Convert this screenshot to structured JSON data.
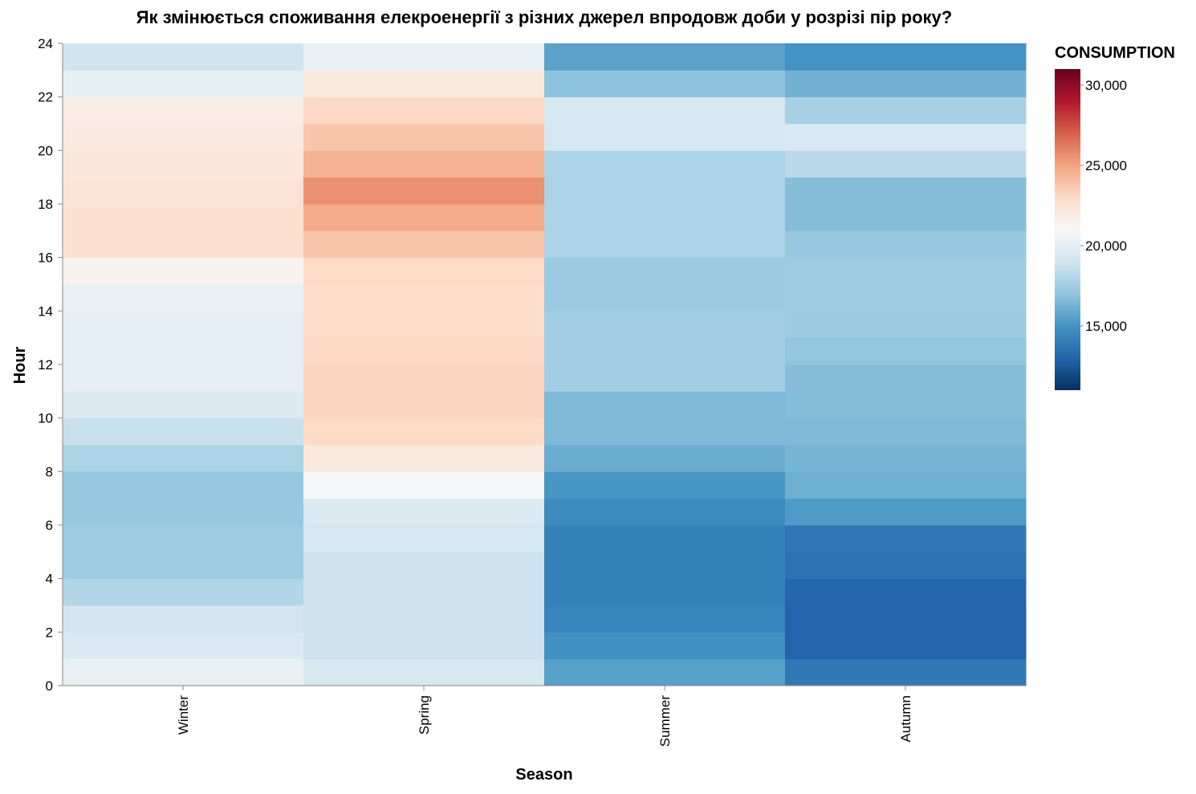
{
  "chart_data": {
    "type": "heatmap",
    "title": "Як змінюється споживання елекроенергії з різних джерел впродовж доби у розрізі пір року?",
    "xlabel": "Season",
    "ylabel": "Hour",
    "x_categories": [
      "Winter",
      "Spring",
      "Summer",
      "Autumn"
    ],
    "y_range": [
      0,
      24
    ],
    "y_ticks": [
      0,
      2,
      4,
      6,
      8,
      10,
      12,
      14,
      16,
      18,
      20,
      22,
      24
    ],
    "legend": {
      "title": "CONSUMPTION",
      "domain": [
        11000,
        31000
      ],
      "ticks": [
        15000,
        20000,
        25000,
        30000
      ],
      "tick_labels": [
        "15,000",
        "20,000",
        "25,000",
        "30,000"
      ],
      "colors": [
        "#053061",
        "#2166ac",
        "#4393c3",
        "#92c5de",
        "#d1e5f0",
        "#f7f7f7",
        "#fddbc7",
        "#f4a582",
        "#d6604d",
        "#b2182b",
        "#67001f"
      ],
      "placement": "right"
    },
    "grid": false,
    "series": [
      {
        "name": "Winter",
        "hours": [
          0,
          1,
          2,
          3,
          4,
          5,
          6,
          7,
          8,
          9,
          10,
          11,
          12,
          13,
          14,
          15,
          16,
          17,
          18,
          19,
          20,
          21,
          22,
          23
        ],
        "values": [
          20200,
          19500,
          19100,
          18000,
          17400,
          17400,
          17100,
          17100,
          17800,
          18700,
          19600,
          20000,
          20000,
          20000,
          20200,
          21300,
          22600,
          22600,
          22400,
          22200,
          22000,
          21800,
          20100,
          19000
        ]
      },
      {
        "name": "Spring",
        "hours": [
          0,
          1,
          2,
          3,
          4,
          5,
          6,
          7,
          8,
          9,
          10,
          11,
          12,
          13,
          14,
          15,
          16,
          17,
          18,
          19,
          20,
          21,
          22,
          23
        ],
        "values": [
          19300,
          18900,
          18900,
          18900,
          18900,
          19200,
          19600,
          20900,
          22100,
          23000,
          23200,
          23200,
          23100,
          22900,
          22900,
          23000,
          23800,
          24800,
          25600,
          24500,
          23800,
          23100,
          22100,
          20200
        ]
      },
      {
        "name": "Summer",
        "hours": [
          0,
          1,
          2,
          3,
          4,
          5,
          6,
          7,
          8,
          9,
          10,
          11,
          12,
          13,
          14,
          15,
          16,
          17,
          18,
          19,
          20,
          21,
          22,
          23
        ],
        "values": [
          15500,
          14900,
          14300,
          14200,
          14200,
          14200,
          14600,
          15100,
          16000,
          16500,
          16500,
          17500,
          17500,
          17500,
          17300,
          17300,
          17800,
          17800,
          17800,
          17800,
          19200,
          19200,
          16900,
          15600
        ]
      },
      {
        "name": "Autumn",
        "hours": [
          0,
          1,
          2,
          3,
          4,
          5,
          6,
          7,
          8,
          9,
          10,
          11,
          12,
          13,
          14,
          15,
          16,
          17,
          18,
          19,
          20,
          21,
          22,
          23
        ],
        "values": [
          13800,
          13000,
          13000,
          13100,
          13600,
          13800,
          15300,
          16100,
          16300,
          16500,
          16700,
          16700,
          17000,
          17300,
          17400,
          17400,
          17200,
          16700,
          16700,
          18300,
          19400,
          17700,
          16200,
          15000
        ]
      }
    ]
  }
}
